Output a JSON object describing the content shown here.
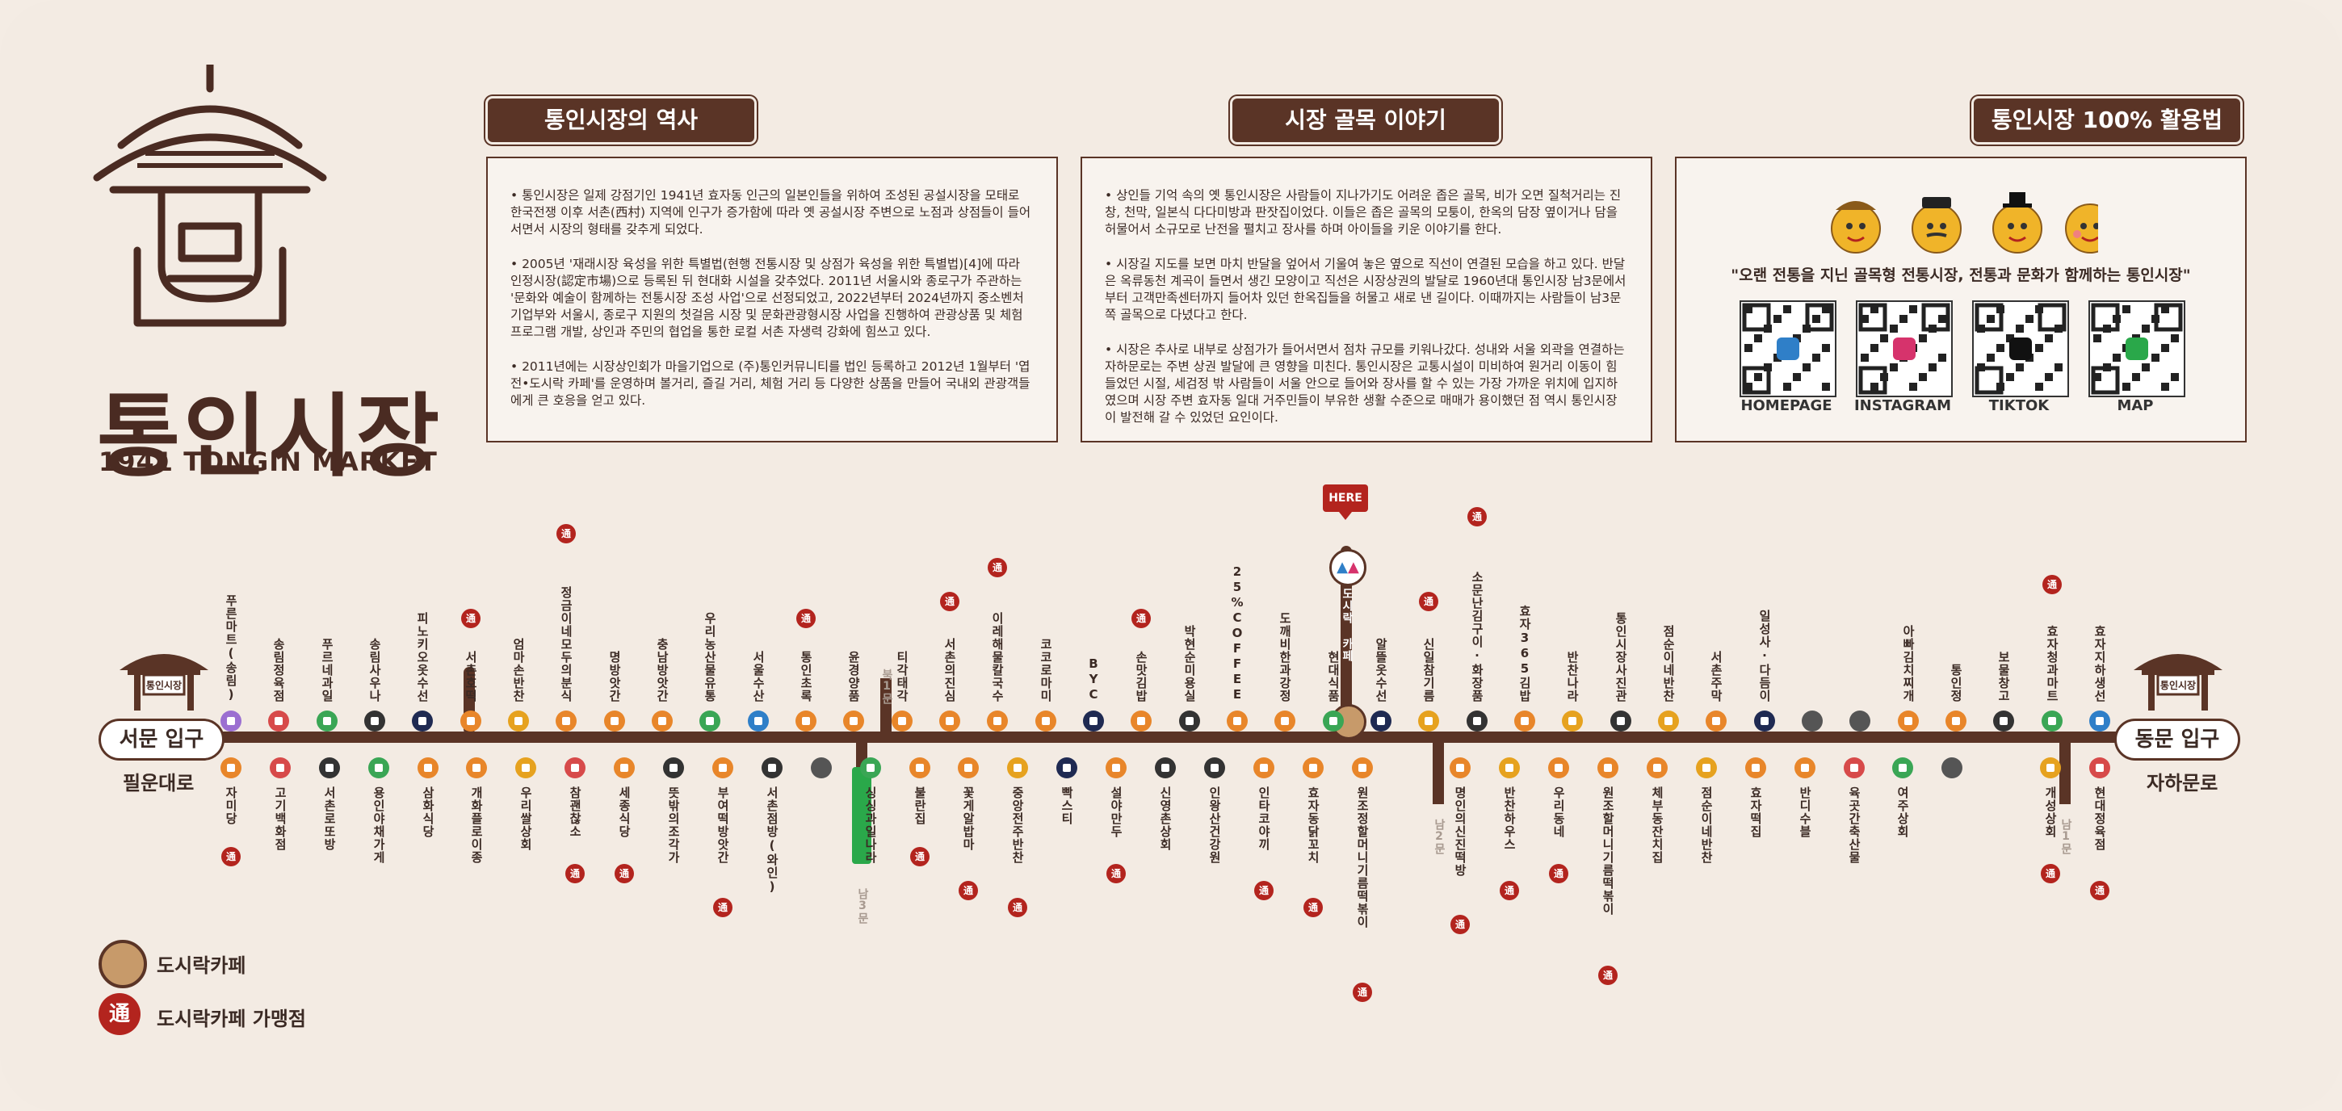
{
  "logo": {
    "name": "통인시장",
    "sub": "1941 TONGIN MARKET"
  },
  "sections": {
    "history": {
      "title": "통인시장의 역사",
      "paragraphs": [
        "• 통인시장은 일제 강점기인 1941년 효자동 인근의 일본인들을 위하여 조성된 공설시장을 모태로 한국전쟁 이후 서촌(西村) 지역에 인구가 증가함에 따라 옛 공설시장 주변으로 노점과 상점들이 들어 서면서 시장의 형태를 갖추게 되었다.",
        "• 2005년 '재래시장 육성을 위한 특별법(현행 전통시장 및 상점가 육성을 위한 특별법)[4]에 따라 인정시장(認定市場)으로 등록된 뒤 현대화 시설을 갖추었다. 2011년 서울시와 종로구가 주관하는 '문화와 예술이 함께하는 전통시장 조성 사업'으로 선정되었고, 2022년부터 2024년까지 중소벤처기업부와 서울시, 종로구 지원의 첫걸음 시장 및 문화관광형시장 사업을 진행하여 관광상품 및 체험프로그램 개발, 상인과 주민의 협업을 통한 로컬 서촌 자생력 강화에 힘쓰고 있다.",
        "• 2011년에는 시장상인회가 마을기업으로 (주)통인커뮤니티를 법인 등록하고 2012년 1월부터 '엽전•도시락 카페'를 운영하며 볼거리, 즐길 거리, 체험 거리 등 다양한 상품을 만들어 국내외 관광객들에게 큰 호응을 얻고 있다."
      ]
    },
    "alley": {
      "title": "시장 골목 이야기",
      "paragraphs": [
        "• 상인들 기억 속의 옛 통인시장은 사람들이 지나가기도 어려운 좁은 골목, 비가 오면 질척거리는 진창, 천막, 일본식 다다미방과 판잣집이었다. 이들은 좁은 골목의 모퉁이, 한옥의 담장 옆이거나 담을 허물어서 소규모로 난전을 펼치고 장사를 하며 아이들을 키운 이야기를 한다.",
        "• 시장길 지도를 보면 마치 반달을 엎어서 기울여 놓은 옆으로 직선이 연결된 모습을 하고 있다. 반달은 옥류동천 계곡이 들면서 생긴 모양이고 직선은 시장상권의 발달로 1960년대 통인시장 남3문에서부터 고객만족센터까지 들어차 있던 한옥집들을 허물고 새로 낸 길이다. 이때까지는 사람들이 남3문쪽 골목으로 다녔다고 한다.",
        "• 시장은 추사로 내부로 상점가가 들어서면서 점차 규모를 키워나갔다. 성내와 서울 외곽을 연결하는 자하문로는 주변 상권 발달에 큰 영향을 미친다. 통인시장은 교통시설이 미비하여 원거리 이동이 힘들었던 시절, 세검정 밖 사람들이 서울 안으로 들어와 장사를 할 수 있는 가장 가까운 위치에 입지하였으며 시장 주변 효자동 일대 거주민들이 부유한 생활 수준으로 매매가 용이했던 점 역시 통인시장이 발전해 갈 수 있었던 요인이다."
      ]
    },
    "usage": {
      "title": "통인시장 100% 활용법",
      "slogan": "\"오랜 전통을 지닌 골목형 전통시장, 전통과 문화가 함께하는 통인시장\"",
      "qr": [
        {
          "label": "HOMEPAGE",
          "icon": "home-icon",
          "color": "#2f7fc8"
        },
        {
          "label": "INSTAGRAM",
          "icon": "instagram-icon",
          "color": "#d6336c"
        },
        {
          "label": "TIKTOK",
          "icon": "tiktok-icon",
          "color": "#111111"
        },
        {
          "label": "MAP",
          "icon": "map-icon",
          "color": "#2aa84a"
        }
      ]
    }
  },
  "map": {
    "here": "HERE",
    "gate_west": "서문 입구",
    "gate_east": "동문 입구",
    "road_west": "필운대로",
    "road_east": "자하문로",
    "sign_text": "통인시장",
    "cafe_label": "도시락 카페",
    "badge": "通",
    "exits": {
      "north1": "북1문",
      "south3": "남3문",
      "south2": "남2문",
      "south1": "남1문"
    },
    "north_shops": [
      {
        "name": "푸른마트(송림)",
        "icon": "cart-icon",
        "color": "#9b6fd1",
        "tong": false
      },
      {
        "name": "송림정육점",
        "icon": "meat-icon",
        "color": "#d74a4a",
        "tong": false
      },
      {
        "name": "푸르네과일",
        "icon": "fruit-icon",
        "color": "#3aa655",
        "tong": false
      },
      {
        "name": "송림사우나",
        "icon": "sauna-icon",
        "color": "#333333",
        "tong": false
      },
      {
        "name": "피노키오옷수선",
        "icon": "shirt-icon",
        "color": "#1f2a52",
        "tong": false
      },
      {
        "name": "서촌호떡",
        "icon": "food-icon",
        "color": "#e8862a",
        "tong": true
      },
      {
        "name": "엄마손반찬",
        "icon": "bowl-icon",
        "color": "#e6a21f",
        "tong": false
      },
      {
        "name": "정금이네모두의분식",
        "icon": "food-icon",
        "color": "#e8862a",
        "tong": true
      },
      {
        "name": "명방앗간",
        "icon": "food-icon",
        "color": "#e8862a",
        "tong": false
      },
      {
        "name": "충남방앗간",
        "icon": "food-icon",
        "color": "#e8862a",
        "tong": false
      },
      {
        "name": "우리농산물유통",
        "icon": "veggie-icon",
        "color": "#3aa655",
        "tong": false
      },
      {
        "name": "서울수산",
        "icon": "fish-icon",
        "color": "#2f7fc8",
        "tong": false
      },
      {
        "name": "통인초록",
        "icon": "food-icon",
        "color": "#e8862a",
        "tong": true
      },
      {
        "name": "윤경양품",
        "icon": "food-icon",
        "color": "#e8862a",
        "tong": false
      },
      {
        "name": "티각태각",
        "icon": "food-icon",
        "color": "#e8862a",
        "tong": false
      },
      {
        "name": "서촌의진심",
        "icon": "food-icon",
        "color": "#e8862a",
        "tong": true
      },
      {
        "name": "이레해물칼국수",
        "icon": "food-icon",
        "color": "#e8862a",
        "tong": true
      },
      {
        "name": "코코로마미",
        "icon": "food-icon",
        "color": "#e8862a",
        "tong": false
      },
      {
        "name": "BYC",
        "icon": "shirt-icon",
        "color": "#1f2a52",
        "tong": false
      },
      {
        "name": "손맛김밥",
        "icon": "food-icon",
        "color": "#e8862a",
        "tong": true
      },
      {
        "name": "박현순미용실",
        "icon": "salon-icon",
        "color": "#333333",
        "tong": false
      },
      {
        "name": "25%COFFEE",
        "icon": "food-icon",
        "color": "#e8862a",
        "tong": false
      },
      {
        "name": "도깨비한과강정",
        "icon": "food-icon",
        "color": "#e8862a",
        "tong": false
      },
      {
        "name": "현대식품",
        "icon": "veggie-icon",
        "color": "#3aa655",
        "tong": false
      },
      {
        "name": "알뜰옷수선",
        "icon": "shirt-icon",
        "color": "#1f2a52",
        "tong": false
      },
      {
        "name": "신일참기름",
        "icon": "bowl-icon",
        "color": "#e6a21f",
        "tong": true
      },
      {
        "name": "소문난김구이·화장품",
        "icon": "salon-icon",
        "color": "#333333",
        "tong": true
      },
      {
        "name": "효자365김밥",
        "icon": "food-icon",
        "color": "#e8862a",
        "tong": false
      },
      {
        "name": "반찬나라",
        "icon": "bowl-icon",
        "color": "#e6a21f",
        "tong": false
      },
      {
        "name": "통인시장사진관",
        "icon": "camera-icon",
        "color": "#333333",
        "tong": false
      },
      {
        "name": "점순이네반찬",
        "icon": "bowl-icon",
        "color": "#e6a21f",
        "tong": false
      },
      {
        "name": "서촌주막",
        "icon": "food-icon",
        "color": "#e8862a",
        "tong": false
      },
      {
        "name": "일성사·다듬이",
        "icon": "shirt-icon",
        "color": "#1f2a52",
        "tong": false
      },
      {
        "name": "",
        "icon": "empty-stall",
        "color": "#555555",
        "tong": false
      },
      {
        "name": "",
        "icon": "empty-stall",
        "color": "#555555",
        "tong": false
      },
      {
        "name": "아빠김치찌개",
        "icon": "food-icon",
        "color": "#e8862a",
        "tong": false
      },
      {
        "name": "통인정",
        "icon": "food-icon",
        "color": "#e8862a",
        "tong": false
      },
      {
        "name": "보물창고",
        "icon": "salon-icon",
        "color": "#333333",
        "tong": false
      },
      {
        "name": "효자청과마트",
        "icon": "veggie-icon",
        "color": "#3aa655",
        "tong": true
      },
      {
        "name": "효자지하생선",
        "icon": "fish-icon",
        "color": "#2f7fc8",
        "tong": false
      }
    ],
    "south_shops": [
      {
        "name": "자미당",
        "icon": "food-icon",
        "color": "#e8862a",
        "tong": true
      },
      {
        "name": "고기백화점",
        "icon": "meat-icon",
        "color": "#d74a4a",
        "tong": false
      },
      {
        "name": "서촌로또방",
        "icon": "salon-icon",
        "color": "#333333",
        "tong": false
      },
      {
        "name": "용인야채가게",
        "icon": "veggie-icon",
        "color": "#3aa655",
        "tong": false
      },
      {
        "name": "삼화식당",
        "icon": "food-icon",
        "color": "#e8862a",
        "tong": false
      },
      {
        "name": "개화플로이종",
        "icon": "food-icon",
        "color": "#e8862a",
        "tong": false
      },
      {
        "name": "우리쌀상회",
        "icon": "bowl-icon",
        "color": "#e6a21f",
        "tong": false
      },
      {
        "name": "참괜찮소",
        "icon": "meat-icon",
        "color": "#d74a4a",
        "tong": true
      },
      {
        "name": "세종식당",
        "icon": "food-icon",
        "color": "#e8862a",
        "tong": true
      },
      {
        "name": "뜻밖의조각가",
        "icon": "salon-icon",
        "color": "#333333",
        "tong": false
      },
      {
        "name": "부여떡방앗간",
        "icon": "food-icon",
        "color": "#e8862a",
        "tong": true
      },
      {
        "name": "서촌점방(와인)",
        "icon": "salon-icon",
        "color": "#333333",
        "tong": false
      },
      {
        "name": "",
        "icon": "empty-stall",
        "color": "#555555",
        "tong": false
      },
      {
        "name": "싱싱과일나라",
        "icon": "fruit-icon",
        "color": "#3aa655",
        "tong": false
      },
      {
        "name": "불란집",
        "icon": "food-icon",
        "color": "#e8862a",
        "tong": true
      },
      {
        "name": "꽃게알밥마",
        "icon": "food-icon",
        "color": "#e8862a",
        "tong": true
      },
      {
        "name": "중앙전주반찬",
        "icon": "bowl-icon",
        "color": "#e6a21f",
        "tong": true
      },
      {
        "name": "빡스티",
        "icon": "shirt-icon",
        "color": "#1f2a52",
        "tong": false
      },
      {
        "name": "설야만두",
        "icon": "food-icon",
        "color": "#e8862a",
        "tong": true
      },
      {
        "name": "신영촌상회",
        "icon": "salon-icon",
        "color": "#333333",
        "tong": false
      },
      {
        "name": "인왕산건강원",
        "icon": "salon-icon",
        "color": "#333333",
        "tong": false
      },
      {
        "name": "인타코야끼",
        "icon": "food-icon",
        "color": "#e8862a",
        "tong": true
      },
      {
        "name": "효자동닭꼬치",
        "icon": "food-icon",
        "color": "#e8862a",
        "tong": true
      },
      {
        "name": "원조정할머니기름떡볶이",
        "icon": "food-icon",
        "color": "#e8862a",
        "tong": true
      },
      {
        "name": "",
        "icon": "exit-marker",
        "color": "#2aa84a",
        "tong": false
      },
      {
        "name": "명인의신진떡방",
        "icon": "food-icon",
        "color": "#e8862a",
        "tong": true
      },
      {
        "name": "반찬하우스",
        "icon": "bowl-icon",
        "color": "#e6a21f",
        "tong": true
      },
      {
        "name": "우리동네",
        "icon": "food-icon",
        "color": "#e8862a",
        "tong": true
      },
      {
        "name": "원조할머니기름떡볶이",
        "icon": "food-icon",
        "color": "#e8862a",
        "tong": true
      },
      {
        "name": "체부동잔치집",
        "icon": "food-icon",
        "color": "#e8862a",
        "tong": false
      },
      {
        "name": "점순이네반찬",
        "icon": "bowl-icon",
        "color": "#e6a21f",
        "tong": false
      },
      {
        "name": "효자떡집",
        "icon": "food-icon",
        "color": "#e8862a",
        "tong": false
      },
      {
        "name": "반디수블",
        "icon": "food-icon",
        "color": "#e8862a",
        "tong": false
      },
      {
        "name": "육곳간축산물",
        "icon": "meat-icon",
        "color": "#d74a4a",
        "tong": false
      },
      {
        "name": "여주상회",
        "icon": "veggie-icon",
        "color": "#3aa655",
        "tong": false
      },
      {
        "name": "",
        "icon": "empty-stall",
        "color": "#555555",
        "tong": false
      },
      {
        "name": "",
        "icon": "exit-marker",
        "color": "#2aa84a",
        "tong": false
      },
      {
        "name": "개성상회",
        "icon": "bowl-icon",
        "color": "#e6a21f",
        "tong": true
      },
      {
        "name": "현대정육점",
        "icon": "meat-icon",
        "color": "#d74a4a",
        "tong": true
      }
    ]
  },
  "legend": {
    "cafe": "도시락카페",
    "franchise": "도시락카페 가맹점",
    "cafe_badge": "도시락 카페",
    "franchise_badge": "通"
  },
  "colors": {
    "brown": "#5a3426",
    "background": "#f3ebe3",
    "red": "#b3241e",
    "green": "#2aa84a"
  }
}
